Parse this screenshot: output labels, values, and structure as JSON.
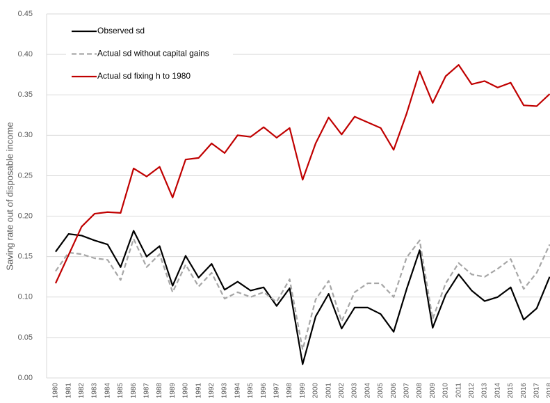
{
  "chart_data": {
    "type": "line",
    "y_label": "Saving rate out of disposable income",
    "categories": [
      "1980",
      "1981",
      "1982",
      "1983",
      "1984",
      "1985",
      "1986",
      "1987",
      "1988",
      "1989",
      "1990",
      "1991",
      "1992",
      "1993",
      "1994",
      "1995",
      "1996",
      "1997",
      "1998",
      "1999",
      "2000",
      "2001",
      "2002",
      "2003",
      "2004",
      "2005",
      "2006",
      "2007",
      "2008",
      "2009",
      "2010",
      "2011",
      "2012",
      "2013",
      "2014",
      "2015",
      "2016",
      "2017",
      "2018"
    ],
    "series": [
      {
        "name": "Observed sd",
        "color": "#000000",
        "dash": false,
        "values": [
          0.156,
          0.178,
          0.176,
          0.17,
          0.165,
          0.137,
          0.182,
          0.15,
          0.163,
          0.114,
          0.151,
          0.124,
          0.141,
          0.109,
          0.119,
          0.108,
          0.112,
          0.089,
          0.111,
          0.017,
          0.076,
          0.104,
          0.061,
          0.087,
          0.087,
          0.079,
          0.057,
          0.11,
          0.158,
          0.062,
          0.103,
          0.128,
          0.108,
          0.095,
          0.1,
          0.112,
          0.072,
          0.086,
          0.125
        ]
      },
      {
        "name": "Actual sd without  capital gains",
        "color": "#a6a6a6",
        "dash": true,
        "values": [
          0.132,
          0.155,
          0.153,
          0.148,
          0.146,
          0.121,
          0.172,
          0.137,
          0.153,
          0.106,
          0.14,
          0.113,
          0.13,
          0.098,
          0.106,
          0.1,
          0.106,
          0.094,
          0.122,
          0.035,
          0.097,
          0.12,
          0.07,
          0.106,
          0.117,
          0.117,
          0.1,
          0.149,
          0.17,
          0.073,
          0.117,
          0.142,
          0.128,
          0.125,
          0.135,
          0.147,
          0.11,
          0.13,
          0.165
        ]
      },
      {
        "name": "Actual sd fixing  h to 1980",
        "color": "#c00000",
        "dash": false,
        "values": [
          0.117,
          0.152,
          0.187,
          0.203,
          0.205,
          0.204,
          0.259,
          0.249,
          0.261,
          0.223,
          0.27,
          0.272,
          0.29,
          0.278,
          0.3,
          0.298,
          0.31,
          0.297,
          0.309,
          0.245,
          0.29,
          0.322,
          0.301,
          0.323,
          0.316,
          0.309,
          0.282,
          0.327,
          0.379,
          0.34,
          0.373,
          0.387,
          0.363,
          0.367,
          0.359,
          0.365,
          0.337,
          0.336,
          0.351
        ]
      }
    ],
    "ylim": [
      0,
      0.45
    ],
    "yticks": [
      {
        "value": 0,
        "label": "0.00"
      },
      0.05,
      {
        "value": 0.1,
        "label": "0.10"
      },
      0.15,
      {
        "value": 0.2,
        "label": "0.20"
      },
      0.25,
      {
        "value": 0.3,
        "label": "0.30"
      },
      0.35,
      {
        "value": 0.4,
        "label": "0.40"
      },
      0.45
    ],
    "grid": true
  }
}
